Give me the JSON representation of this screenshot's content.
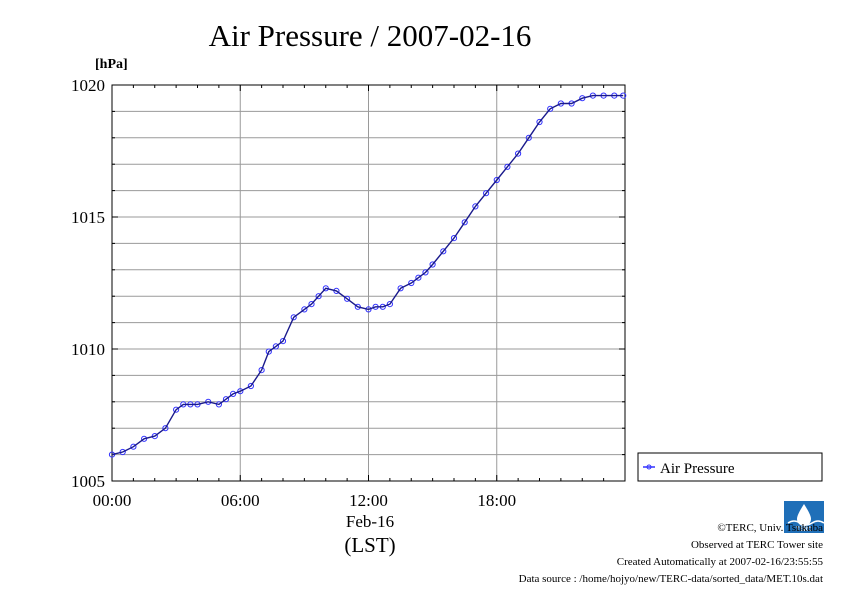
{
  "chart_data": {
    "type": "scatter",
    "title": "Air Pressure / 2007-02-16",
    "unit_label": "[hPa]",
    "date_label": "Feb-16",
    "xlabel": "(LST)",
    "xlim": [
      "00:00",
      "24:00"
    ],
    "ylim": [
      1005,
      1020
    ],
    "x_ticks": [
      "00:00",
      "06:00",
      "12:00",
      "18:00"
    ],
    "y_ticks": [
      1005,
      1010,
      1015,
      1020
    ],
    "grid": true,
    "legend_position": "right",
    "series": [
      {
        "name": "Air Pressure",
        "color": "#3333ff",
        "x": [
          "00:00",
          "00:30",
          "01:00",
          "01:30",
          "02:00",
          "02:30",
          "03:00",
          "03:20",
          "03:40",
          "04:00",
          "04:30",
          "05:00",
          "05:20",
          "05:40",
          "06:00",
          "06:30",
          "07:00",
          "07:20",
          "07:40",
          "08:00",
          "08:30",
          "09:00",
          "09:20",
          "09:40",
          "10:00",
          "10:30",
          "11:00",
          "11:30",
          "12:00",
          "12:20",
          "12:40",
          "13:00",
          "13:30",
          "14:00",
          "14:20",
          "14:40",
          "15:00",
          "15:30",
          "16:00",
          "16:30",
          "17:00",
          "17:30",
          "18:00",
          "18:30",
          "19:00",
          "19:30",
          "20:00",
          "20:30",
          "21:00",
          "21:30",
          "22:00",
          "22:30",
          "23:00",
          "23:30",
          "23:55"
        ],
        "y": [
          1006.0,
          1006.1,
          1006.3,
          1006.6,
          1006.7,
          1007.0,
          1007.7,
          1007.9,
          1007.9,
          1007.9,
          1008.0,
          1007.9,
          1008.1,
          1008.3,
          1008.4,
          1008.6,
          1009.2,
          1009.9,
          1010.1,
          1010.3,
          1011.2,
          1011.5,
          1011.7,
          1012.0,
          1012.3,
          1012.2,
          1011.9,
          1011.6,
          1011.5,
          1011.6,
          1011.6,
          1011.7,
          1012.3,
          1012.5,
          1012.7,
          1012.9,
          1013.2,
          1013.7,
          1014.2,
          1014.8,
          1015.4,
          1015.9,
          1016.4,
          1016.9,
          1017.4,
          1018.0,
          1018.6,
          1019.1,
          1019.3,
          1019.3,
          1019.5,
          1019.6,
          1019.6,
          1019.6,
          1019.6
        ]
      }
    ]
  },
  "credits": {
    "copyright": "©TERC, Univ. Tsukuba",
    "observed": "Observed at TERC Tower site",
    "created": "Created Automatically at 2007-02-16/23:55:55",
    "source": "Data source : /home/hojyo/new/TERC-data/sorted_data/MET.10s.dat"
  },
  "logo": {
    "text": "TERC",
    "color": "#1f6fb8"
  }
}
